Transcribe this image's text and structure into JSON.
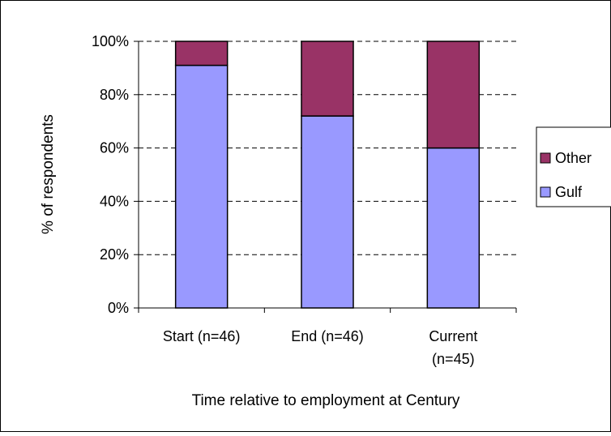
{
  "chart_data": {
    "type": "bar",
    "stacked": true,
    "percent_stacked": true,
    "categories": [
      "Start (n=46)",
      "End (n=46)",
      "Current (n=45)"
    ],
    "series": [
      {
        "name": "Gulf",
        "values": [
          91,
          72,
          60
        ],
        "color": "#9999ff"
      },
      {
        "name": "Other",
        "values": [
          9,
          28,
          40
        ],
        "color": "#993366"
      }
    ],
    "ylabel": "% of respondents",
    "xlabel": "Time relative to employment at Century",
    "ylim": [
      0,
      100
    ],
    "yticks": [
      "0%",
      "20%",
      "40%",
      "60%",
      "80%",
      "100%"
    ],
    "grid": "horizontal-dashed",
    "legend": "right",
    "legend_order": [
      "Other",
      "Gulf"
    ]
  }
}
